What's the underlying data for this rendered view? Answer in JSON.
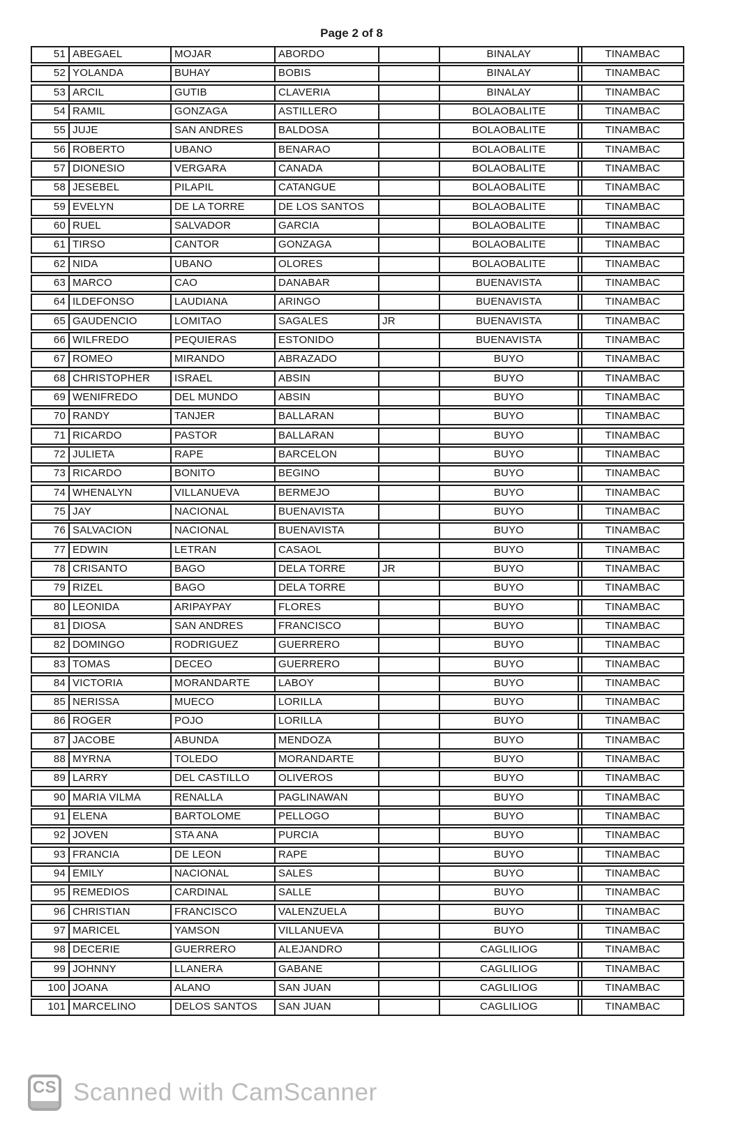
{
  "page": {
    "header": "Page 2 of 8"
  },
  "watermark": {
    "logo_text": "CS",
    "text": "Scanned with CamScanner"
  },
  "colors": {
    "ink": "#141414",
    "table_border": "#1a1a1a",
    "watermark_gray": "#bcbcbc",
    "background": "#ffffff"
  },
  "table": {
    "rows": [
      {
        "no": "51",
        "first_name": "ABEGAEL",
        "middle_name": "MOJAR",
        "last_name": "ABORDO",
        "suffix": "",
        "barangay": "BINALAY",
        "municipality": "TINAMBAC"
      },
      {
        "no": "52",
        "first_name": "YOLANDA",
        "middle_name": "BUHAY",
        "last_name": "BOBIS",
        "suffix": "",
        "barangay": "BINALAY",
        "municipality": "TINAMBAC"
      },
      {
        "no": "53",
        "first_name": "ARCIL",
        "middle_name": "GUTIB",
        "last_name": "CLAVERIA",
        "suffix": "",
        "barangay": "BINALAY",
        "municipality": "TINAMBAC"
      },
      {
        "no": "54",
        "first_name": "RAMIL",
        "middle_name": "GONZAGA",
        "last_name": "ASTILLERO",
        "suffix": "",
        "barangay": "BOLAOBALITE",
        "municipality": "TINAMBAC"
      },
      {
        "no": "55",
        "first_name": "JUJE",
        "middle_name": "SAN ANDRES",
        "last_name": "BALDOSA",
        "suffix": "",
        "barangay": "BOLAOBALITE",
        "municipality": "TINAMBAC"
      },
      {
        "no": "56",
        "first_name": "ROBERTO",
        "middle_name": "UBANO",
        "last_name": "BENARAO",
        "suffix": "",
        "barangay": "BOLAOBALITE",
        "municipality": "TINAMBAC"
      },
      {
        "no": "57",
        "first_name": "DIONESIO",
        "middle_name": "VERGARA",
        "last_name": "CANADA",
        "suffix": "",
        "barangay": "BOLAOBALITE",
        "municipality": "TINAMBAC"
      },
      {
        "no": "58",
        "first_name": "JESEBEL",
        "middle_name": "PILAPIL",
        "last_name": "CATANGUE",
        "suffix": "",
        "barangay": "BOLAOBALITE",
        "municipality": "TINAMBAC"
      },
      {
        "no": "59",
        "first_name": "EVELYN",
        "middle_name": "DE LA TORRE",
        "last_name": "DE LOS SANTOS",
        "suffix": "",
        "barangay": "BOLAOBALITE",
        "municipality": "TINAMBAC"
      },
      {
        "no": "60",
        "first_name": "RUEL",
        "middle_name": "SALVADOR",
        "last_name": "GARCIA",
        "suffix": "",
        "barangay": "BOLAOBALITE",
        "municipality": "TINAMBAC"
      },
      {
        "no": "61",
        "first_name": "TIRSO",
        "middle_name": "CANTOR",
        "last_name": "GONZAGA",
        "suffix": "",
        "barangay": "BOLAOBALITE",
        "municipality": "TINAMBAC"
      },
      {
        "no": "62",
        "first_name": "NIDA",
        "middle_name": "UBANO",
        "last_name": "OLORES",
        "suffix": "",
        "barangay": "BOLAOBALITE",
        "municipality": "TINAMBAC"
      },
      {
        "no": "63",
        "first_name": "MARCO",
        "middle_name": "CAO",
        "last_name": "DANABAR",
        "suffix": "",
        "barangay": "BUENAVISTA",
        "municipality": "TINAMBAC"
      },
      {
        "no": "64",
        "first_name": "ILDEFONSO",
        "middle_name": "LAUDIANA",
        "last_name": "ARINGO",
        "suffix": "",
        "barangay": "BUENAVISTA",
        "municipality": "TINAMBAC"
      },
      {
        "no": "65",
        "first_name": "GAUDENCIO",
        "middle_name": "LOMITAO",
        "last_name": "SAGALES",
        "suffix": "JR",
        "barangay": "BUENAVISTA",
        "municipality": "TINAMBAC"
      },
      {
        "no": "66",
        "first_name": "WILFREDO",
        "middle_name": "PEQUIERAS",
        "last_name": "ESTONIDO",
        "suffix": "",
        "barangay": "BUENAVISTA",
        "municipality": "TINAMBAC"
      },
      {
        "no": "67",
        "first_name": "ROMEO",
        "middle_name": "MIRANDO",
        "last_name": "ABRAZADO",
        "suffix": "",
        "barangay": "BUYO",
        "municipality": "TINAMBAC"
      },
      {
        "no": "68",
        "first_name": "CHRISTOPHER",
        "middle_name": "ISRAEL",
        "last_name": "ABSIN",
        "suffix": "",
        "barangay": "BUYO",
        "municipality": "TINAMBAC"
      },
      {
        "no": "69",
        "first_name": "WENIFREDO",
        "middle_name": "DEL MUNDO",
        "last_name": "ABSIN",
        "suffix": "",
        "barangay": "BUYO",
        "municipality": "TINAMBAC"
      },
      {
        "no": "70",
        "first_name": "RANDY",
        "middle_name": "TANJER",
        "last_name": "BALLARAN",
        "suffix": "",
        "barangay": "BUYO",
        "municipality": "TINAMBAC"
      },
      {
        "no": "71",
        "first_name": "RICARDO",
        "middle_name": "PASTOR",
        "last_name": "BALLARAN",
        "suffix": "",
        "barangay": "BUYO",
        "municipality": "TINAMBAC"
      },
      {
        "no": "72",
        "first_name": "JULIETA",
        "middle_name": "RAPE",
        "last_name": "BARCELON",
        "suffix": "",
        "barangay": "BUYO",
        "municipality": "TINAMBAC"
      },
      {
        "no": "73",
        "first_name": "RICARDO",
        "middle_name": "BONITO",
        "last_name": "BEGINO",
        "suffix": "",
        "barangay": "BUYO",
        "municipality": "TINAMBAC"
      },
      {
        "no": "74",
        "first_name": "WHENALYN",
        "middle_name": "VILLANUEVA",
        "last_name": "BERMEJO",
        "suffix": "",
        "barangay": "BUYO",
        "municipality": "TINAMBAC"
      },
      {
        "no": "75",
        "first_name": "JAY",
        "middle_name": "NACIONAL",
        "last_name": "BUENAVISTA",
        "suffix": "",
        "barangay": "BUYO",
        "municipality": "TINAMBAC"
      },
      {
        "no": "76",
        "first_name": "SALVACION",
        "middle_name": "NACIONAL",
        "last_name": "BUENAVISTA",
        "suffix": "",
        "barangay": "BUYO",
        "municipality": "TINAMBAC"
      },
      {
        "no": "77",
        "first_name": "EDWIN",
        "middle_name": "LETRAN",
        "last_name": "CASAOL",
        "suffix": "",
        "barangay": "BUYO",
        "municipality": "TINAMBAC"
      },
      {
        "no": "78",
        "first_name": "CRISANTO",
        "middle_name": "BAGO",
        "last_name": "DELA TORRE",
        "suffix": "JR",
        "barangay": "BUYO",
        "municipality": "TINAMBAC"
      },
      {
        "no": "79",
        "first_name": "RIZEL",
        "middle_name": "BAGO",
        "last_name": "DELA TORRE",
        "suffix": "",
        "barangay": "BUYO",
        "municipality": "TINAMBAC"
      },
      {
        "no": "80",
        "first_name": "LEONIDA",
        "middle_name": "ARIPAYPAY",
        "last_name": "FLORES",
        "suffix": "",
        "barangay": "BUYO",
        "municipality": "TINAMBAC"
      },
      {
        "no": "81",
        "first_name": "DIOSA",
        "middle_name": "SAN ANDRES",
        "last_name": "FRANCISCO",
        "suffix": "",
        "barangay": "BUYO",
        "municipality": "TINAMBAC"
      },
      {
        "no": "82",
        "first_name": "DOMINGO",
        "middle_name": "RODRIGUEZ",
        "last_name": "GUERRERO",
        "suffix": "",
        "barangay": "BUYO",
        "municipality": "TINAMBAC"
      },
      {
        "no": "83",
        "first_name": "TOMAS",
        "middle_name": "DECEO",
        "last_name": "GUERRERO",
        "suffix": "",
        "barangay": "BUYO",
        "municipality": "TINAMBAC"
      },
      {
        "no": "84",
        "first_name": "VICTORIA",
        "middle_name": "MORANDARTE",
        "last_name": "LABOY",
        "suffix": "",
        "barangay": "BUYO",
        "municipality": "TINAMBAC"
      },
      {
        "no": "85",
        "first_name": "NERISSA",
        "middle_name": "MUECO",
        "last_name": "LORILLA",
        "suffix": "",
        "barangay": "BUYO",
        "municipality": "TINAMBAC"
      },
      {
        "no": "86",
        "first_name": "ROGER",
        "middle_name": "POJO",
        "last_name": "LORILLA",
        "suffix": "",
        "barangay": "BUYO",
        "municipality": "TINAMBAC"
      },
      {
        "no": "87",
        "first_name": "JACOBE",
        "middle_name": "ABUNDA",
        "last_name": "MENDOZA",
        "suffix": "",
        "barangay": "BUYO",
        "municipality": "TINAMBAC"
      },
      {
        "no": "88",
        "first_name": "MYRNA",
        "middle_name": "TOLEDO",
        "last_name": "MORANDARTE",
        "suffix": "",
        "barangay": "BUYO",
        "municipality": "TINAMBAC"
      },
      {
        "no": "89",
        "first_name": "LARRY",
        "middle_name": "DEL CASTILLO",
        "last_name": "OLIVEROS",
        "suffix": "",
        "barangay": "BUYO",
        "municipality": "TINAMBAC"
      },
      {
        "no": "90",
        "first_name": "MARIA VILMA",
        "middle_name": "RENALLA",
        "last_name": "PAGLINAWAN",
        "suffix": "",
        "barangay": "BUYO",
        "municipality": "TINAMBAC"
      },
      {
        "no": "91",
        "first_name": "ELENA",
        "middle_name": "BARTOLOME",
        "last_name": "PELLOGO",
        "suffix": "",
        "barangay": "BUYO",
        "municipality": "TINAMBAC"
      },
      {
        "no": "92",
        "first_name": "JOVEN",
        "middle_name": "STA ANA",
        "last_name": "PURCIA",
        "suffix": "",
        "barangay": "BUYO",
        "municipality": "TINAMBAC"
      },
      {
        "no": "93",
        "first_name": "FRANCIA",
        "middle_name": "DE LEON",
        "last_name": "RAPE",
        "suffix": "",
        "barangay": "BUYO",
        "municipality": "TINAMBAC"
      },
      {
        "no": "94",
        "first_name": "EMILY",
        "middle_name": "NACIONAL",
        "last_name": "SALES",
        "suffix": "",
        "barangay": "BUYO",
        "municipality": "TINAMBAC"
      },
      {
        "no": "95",
        "first_name": "REMEDIOS",
        "middle_name": "CARDINAL",
        "last_name": "SALLE",
        "suffix": "",
        "barangay": "BUYO",
        "municipality": "TINAMBAC"
      },
      {
        "no": "96",
        "first_name": "CHRISTIAN",
        "middle_name": "FRANCISCO",
        "last_name": "VALENZUELA",
        "suffix": "",
        "barangay": "BUYO",
        "municipality": "TINAMBAC"
      },
      {
        "no": "97",
        "first_name": "MARICEL",
        "middle_name": "YAMSON",
        "last_name": "VILLANUEVA",
        "suffix": "",
        "barangay": "BUYO",
        "municipality": "TINAMBAC"
      },
      {
        "no": "98",
        "first_name": "DECERIE",
        "middle_name": "GUERRERO",
        "last_name": "ALEJANDRO",
        "suffix": "",
        "barangay": "CAGLILIOG",
        "municipality": "TINAMBAC"
      },
      {
        "no": "99",
        "first_name": "JOHNNY",
        "middle_name": "LLANERA",
        "last_name": "GABANE",
        "suffix": "",
        "barangay": "CAGLILIOG",
        "municipality": "TINAMBAC"
      },
      {
        "no": "100",
        "first_name": "JOANA",
        "middle_name": "ALANO",
        "last_name": "SAN JUAN",
        "suffix": "",
        "barangay": "CAGLILIOG",
        "municipality": "TINAMBAC"
      },
      {
        "no": "101",
        "first_name": "MARCELINO",
        "middle_name": "DELOS SANTOS",
        "last_name": "SAN JUAN",
        "suffix": "",
        "barangay": "CAGLILIOG",
        "municipality": "TINAMBAC"
      }
    ]
  }
}
